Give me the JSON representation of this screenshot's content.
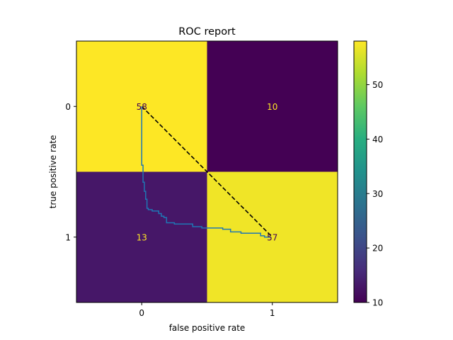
{
  "chart_data": {
    "type": "heatmap",
    "title": "ROC report",
    "xlabel": "false positive rate",
    "ylabel": "true positive rate",
    "x_ticks": [
      "0",
      "1"
    ],
    "y_ticks": [
      "0",
      "1"
    ],
    "xlim": [
      -0.5,
      1.5
    ],
    "ylim": [
      1.5,
      -0.5
    ],
    "matrix": [
      [
        58,
        10
      ],
      [
        13,
        57
      ]
    ],
    "colormap": "viridis",
    "colorbar": {
      "min": 10,
      "max": 58,
      "ticks": [
        10,
        20,
        30,
        40,
        50
      ],
      "tick_labels": [
        "10",
        "20",
        "30",
        "40",
        "50"
      ]
    },
    "overlay_lines": [
      {
        "style": "dashed",
        "color": "#000000",
        "x": [
          0.0,
          1.0
        ],
        "y": [
          0.0,
          1.0
        ]
      },
      {
        "style": "step",
        "color": "#1f77b4",
        "x": [
          0.0,
          0.0,
          0.01,
          0.01,
          0.02,
          0.02,
          0.03,
          0.03,
          0.04,
          0.04,
          0.05,
          0.05,
          0.08,
          0.08,
          0.13,
          0.13,
          0.15,
          0.15,
          0.17,
          0.17,
          0.19,
          0.19,
          0.25,
          0.25,
          0.39,
          0.39,
          0.46,
          0.46,
          0.62,
          0.62,
          0.68,
          0.68,
          0.76,
          0.76,
          0.91,
          0.91,
          0.94,
          0.94,
          0.99,
          0.99
        ],
        "y": [
          0.0,
          0.45,
          0.45,
          0.58,
          0.58,
          0.65,
          0.65,
          0.71,
          0.71,
          0.78,
          0.78,
          0.79,
          0.79,
          0.8,
          0.8,
          0.82,
          0.82,
          0.84,
          0.84,
          0.85,
          0.85,
          0.89,
          0.89,
          0.9,
          0.9,
          0.92,
          0.92,
          0.93,
          0.93,
          0.94,
          0.94,
          0.96,
          0.96,
          0.97,
          0.97,
          0.99,
          0.99,
          1.0,
          1.0,
          1.0
        ]
      }
    ]
  }
}
